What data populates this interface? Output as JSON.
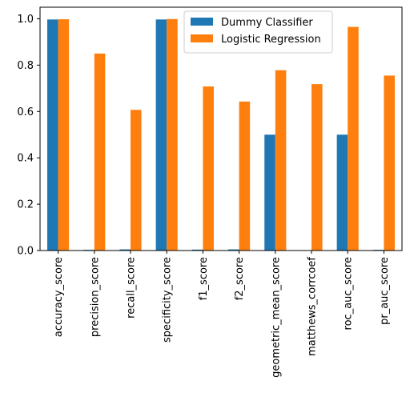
{
  "chart_data": {
    "type": "bar",
    "title": "",
    "xlabel": "",
    "ylabel": "",
    "ylim": [
      0,
      1.05
    ],
    "yticks": [
      "0.0",
      "0.2",
      "0.4",
      "0.6",
      "0.8",
      "1.0"
    ],
    "grid": false,
    "legend_position": "top-center",
    "categories": [
      "accuracy_score",
      "precision_score",
      "recall_score",
      "specificity_score",
      "f1_score",
      "f2_score",
      "geometric_mean_score",
      "matthews_corrcoef",
      "roc_auc_score",
      "pr_auc_score"
    ],
    "series": [
      {
        "name": "Dummy Classifier",
        "color": "#1f77b4",
        "values": [
          0.997,
          0.003,
          0.005,
          0.997,
          0.004,
          0.005,
          0.5,
          0.0,
          0.5,
          0.003
        ]
      },
      {
        "name": "Logistic Regression",
        "color": "#ff7f0e",
        "values": [
          0.998,
          0.85,
          0.607,
          0.999,
          0.708,
          0.643,
          0.778,
          0.718,
          0.965,
          0.755
        ]
      }
    ]
  }
}
